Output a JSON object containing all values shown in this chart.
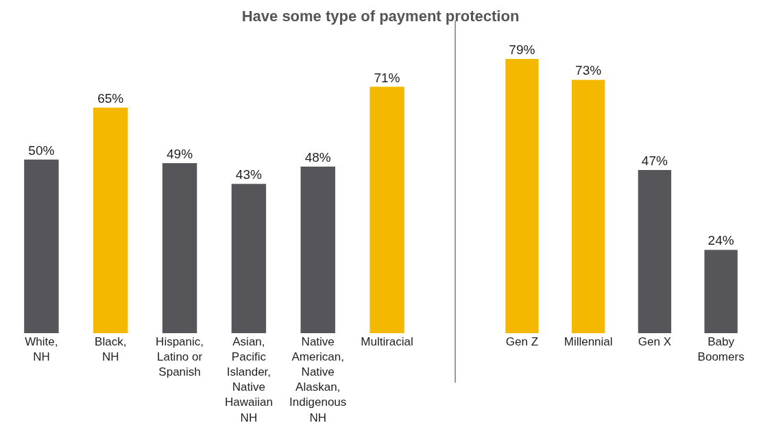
{
  "chart_data": [
    {
      "type": "bar",
      "title": "Have some type of payment protection",
      "categories": [
        "White,\nNH",
        "Black,\nNH",
        "Hispanic,\nLatino or\nSpanish",
        "Asian,\nPacific\nIslander,\nNative\nHawaiian\nNH",
        "Native\nAmerican,\nNative\nAlaskan,\nIndigenous\nNH",
        "Multiracial"
      ],
      "values": [
        50,
        65,
        49,
        43,
        48,
        71
      ],
      "value_labels": [
        "50%",
        "65%",
        "49%",
        "43%",
        "48%",
        "71%"
      ],
      "colors": [
        "#55555a",
        "#f5b800",
        "#55555a",
        "#55555a",
        "#55555a",
        "#f5b800"
      ]
    },
    {
      "type": "bar",
      "categories": [
        "Gen Z",
        "Millennial",
        "Gen X",
        "Baby\nBoomers"
      ],
      "values": [
        79,
        73,
        47,
        24
      ],
      "value_labels": [
        "79%",
        "73%",
        "47%",
        "24%"
      ],
      "colors": [
        "#f5b800",
        "#f5b800",
        "#55555a",
        "#55555a"
      ]
    }
  ]
}
